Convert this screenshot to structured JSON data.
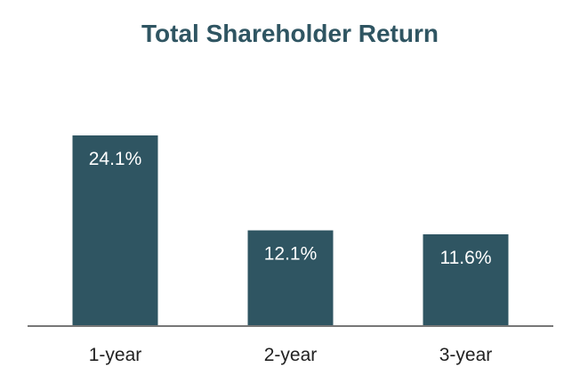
{
  "chart_data": {
    "type": "bar",
    "title": "Total Shareholder Return",
    "categories": [
      "1-year",
      "2-year",
      "3-year"
    ],
    "values": [
      24.1,
      12.1,
      11.6
    ],
    "value_labels": [
      "24.1%",
      "12.1%",
      "11.6%"
    ],
    "xlabel": "",
    "ylabel": "",
    "ylim": [
      0,
      24.1
    ],
    "grid": false,
    "legend": "none",
    "bar_color": "#2f5562",
    "title_color": "#2f5562",
    "axis_color": "#777777"
  }
}
